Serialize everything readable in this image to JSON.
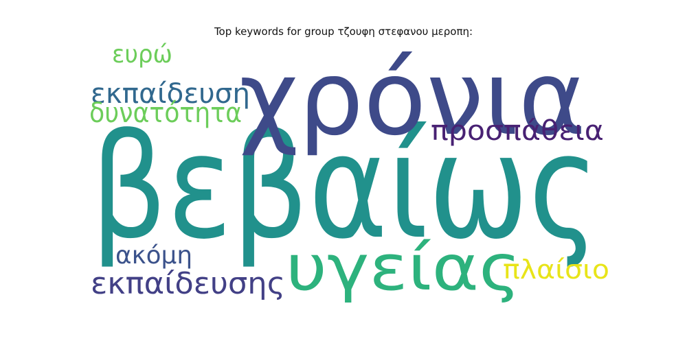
{
  "chart_data": {
    "type": "wordcloud",
    "title": "Top keywords for group τζουφη στεφανου μεροπη:",
    "words": [
      {
        "text": "βεβαίως",
        "color": "#21918c"
      },
      {
        "text": "χρόνια",
        "color": "#3e4a89"
      },
      {
        "text": "υγείας",
        "color": "#2db27d"
      },
      {
        "text": "προσπάθεια",
        "color": "#482173"
      },
      {
        "text": "εκπαίδευση",
        "color": "#31688e"
      },
      {
        "text": "δυνατότητα",
        "color": "#6ccd5a"
      },
      {
        "text": "ευρώ",
        "color": "#6ccd5a"
      },
      {
        "text": "ακόμη",
        "color": "#3b528b"
      },
      {
        "text": "εκπαίδευσης",
        "color": "#424086"
      },
      {
        "text": "πλαίσιο",
        "color": "#e8e419"
      }
    ]
  }
}
